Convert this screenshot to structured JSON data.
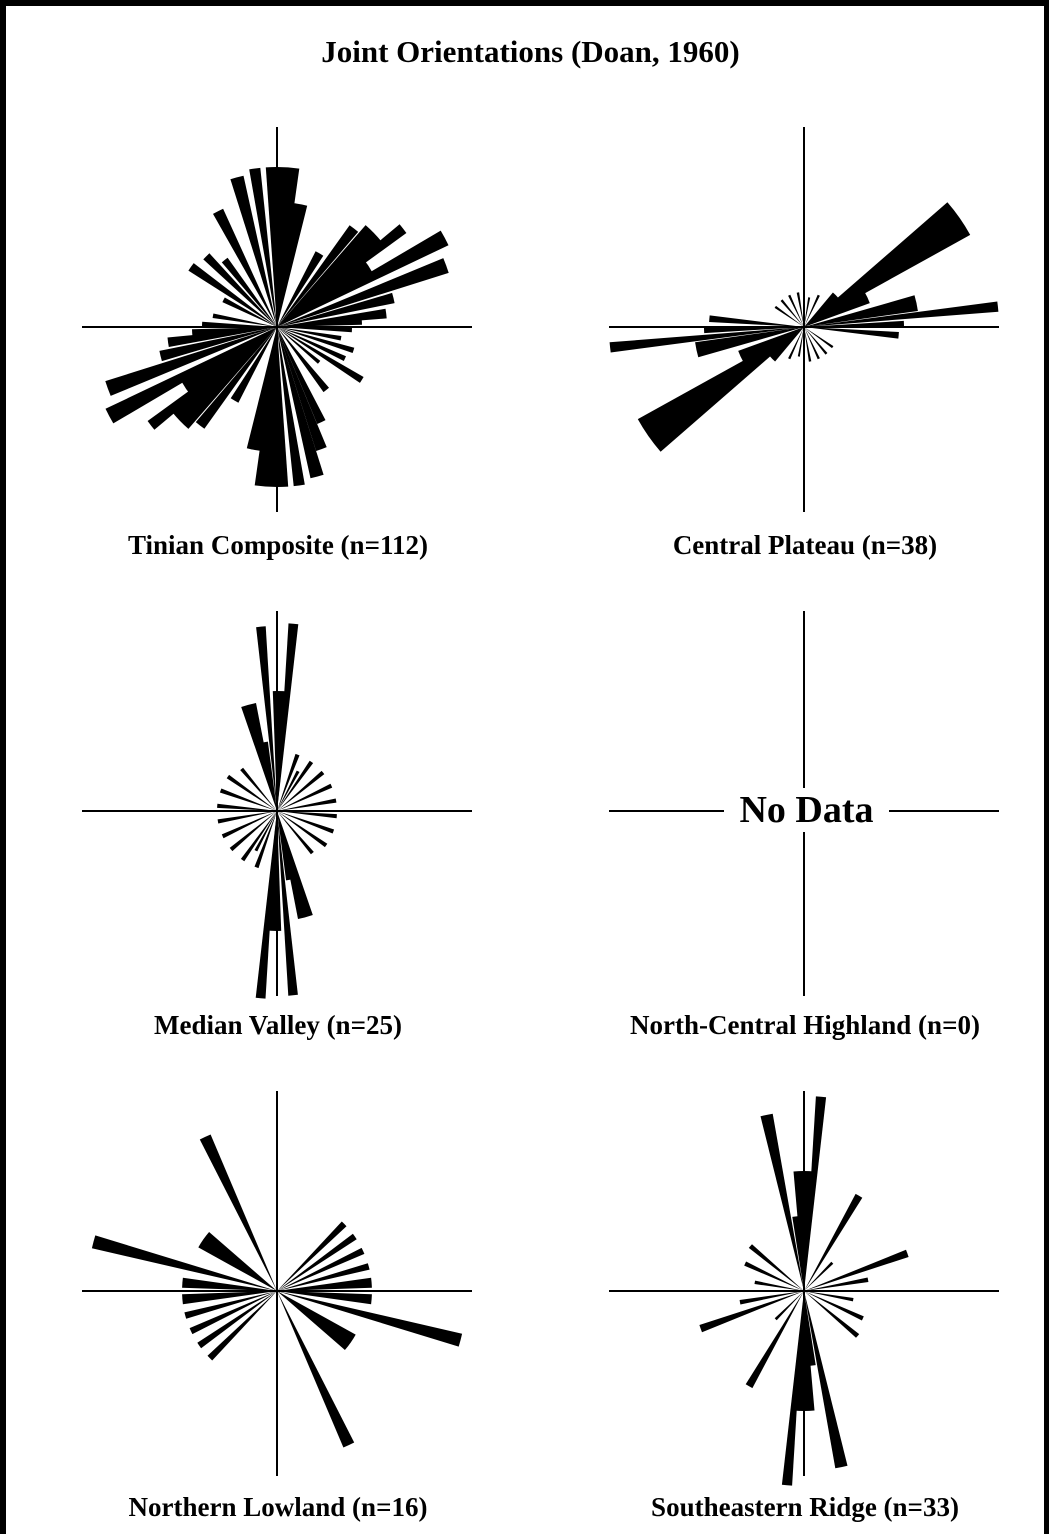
{
  "title": "Joint Orientations (Doan, 1960)",
  "no_data_text": "No Data",
  "chart_data": [
    {
      "type": "rose",
      "title": "Tinian Composite (n=112)",
      "petals": [
        {
          "az": 2,
          "r": 160,
          "w": 12
        },
        {
          "az": 8,
          "r": 125,
          "w": 12
        },
        {
          "az": 352,
          "r": 160,
          "w": 4
        },
        {
          "az": 345,
          "r": 155,
          "w": 5
        },
        {
          "az": 333,
          "r": 130,
          "w": 5
        },
        {
          "az": 322,
          "r": 85,
          "w": 5
        },
        {
          "az": 315,
          "r": 100,
          "w": 5
        },
        {
          "az": 305,
          "r": 105,
          "w": 5
        },
        {
          "az": 297,
          "r": 60,
          "w": 5
        },
        {
          "az": 30,
          "r": 85,
          "w": 6
        },
        {
          "az": 38,
          "r": 125,
          "w": 5
        },
        {
          "az": 46,
          "r": 135,
          "w": 10
        },
        {
          "az": 52,
          "r": 160,
          "w": 4
        },
        {
          "az": 56,
          "r": 110,
          "w": 10
        },
        {
          "az": 62,
          "r": 190,
          "w": 5
        },
        {
          "az": 70,
          "r": 180,
          "w": 5
        },
        {
          "az": 76,
          "r": 120,
          "w": 5
        },
        {
          "az": 83,
          "r": 110,
          "w": 5
        },
        {
          "az": 86,
          "r": 85,
          "w": 5
        },
        {
          "az": 92,
          "r": 75,
          "w": 4
        },
        {
          "az": 100,
          "r": 65,
          "w": 4
        },
        {
          "az": 107,
          "r": 80,
          "w": 4
        },
        {
          "az": 115,
          "r": 75,
          "w": 4
        },
        {
          "az": 122,
          "r": 100,
          "w": 4
        },
        {
          "az": 130,
          "r": 55,
          "w": 4
        },
        {
          "az": 182,
          "r": 160,
          "w": 12
        },
        {
          "az": 188,
          "r": 125,
          "w": 12
        },
        {
          "az": 172,
          "r": 160,
          "w": 4
        },
        {
          "az": 165,
          "r": 155,
          "w": 5
        },
        {
          "az": 155,
          "r": 105,
          "w": 5
        },
        {
          "az": 160,
          "r": 130,
          "w": 5
        },
        {
          "az": 142,
          "r": 80,
          "w": 5
        },
        {
          "az": 210,
          "r": 85,
          "w": 6
        },
        {
          "az": 218,
          "r": 125,
          "w": 5
        },
        {
          "az": 226,
          "r": 135,
          "w": 10
        },
        {
          "az": 232,
          "r": 160,
          "w": 4
        },
        {
          "az": 236,
          "r": 110,
          "w": 10
        },
        {
          "az": 242,
          "r": 190,
          "w": 5
        },
        {
          "az": 250,
          "r": 180,
          "w": 5
        },
        {
          "az": 256,
          "r": 120,
          "w": 5
        },
        {
          "az": 262,
          "r": 110,
          "w": 5
        },
        {
          "az": 266,
          "r": 85,
          "w": 5
        },
        {
          "az": 272,
          "r": 75,
          "w": 4
        },
        {
          "az": 280,
          "r": 65,
          "w": 4
        }
      ]
    },
    {
      "type": "rose",
      "title": "Central Plateau (n=38)",
      "petals": [
        {
          "az": 55,
          "r": 190,
          "w": 12
        },
        {
          "az": 235,
          "r": 190,
          "w": 12
        },
        {
          "az": 78,
          "r": 115,
          "w": 8
        },
        {
          "az": 258,
          "r": 110,
          "w": 8
        },
        {
          "az": 84,
          "r": 195,
          "w": 3
        },
        {
          "az": 264,
          "r": 195,
          "w": 3
        },
        {
          "az": 88,
          "r": 100,
          "w": 3
        },
        {
          "az": 268,
          "r": 100,
          "w": 3
        },
        {
          "az": 95,
          "r": 95,
          "w": 4
        },
        {
          "az": 275,
          "r": 95,
          "w": 4
        },
        {
          "az": 65,
          "r": 70,
          "w": 10
        },
        {
          "az": 245,
          "r": 70,
          "w": 10
        },
        {
          "az": 45,
          "r": 45,
          "w": 10
        },
        {
          "az": 225,
          "r": 45,
          "w": 10
        },
        {
          "az": 25,
          "r": 35,
          "w": 4
        },
        {
          "az": 205,
          "r": 35,
          "w": 4
        },
        {
          "az": 350,
          "r": 35,
          "w": 4
        },
        {
          "az": 170,
          "r": 35,
          "w": 4
        },
        {
          "az": 335,
          "r": 35,
          "w": 4
        },
        {
          "az": 155,
          "r": 35,
          "w": 4
        },
        {
          "az": 320,
          "r": 35,
          "w": 4
        },
        {
          "az": 140,
          "r": 35,
          "w": 4
        },
        {
          "az": 305,
          "r": 35,
          "w": 4
        },
        {
          "az": 125,
          "r": 35,
          "w": 4
        },
        {
          "az": 10,
          "r": 30,
          "w": 4
        },
        {
          "az": 190,
          "r": 30,
          "w": 4
        }
      ]
    },
    {
      "type": "rose",
      "title": "Median Valley (n=25)",
      "petals": [
        {
          "az": 5,
          "r": 188,
          "w": 3
        },
        {
          "az": 185,
          "r": 188,
          "w": 3
        },
        {
          "az": 355,
          "r": 185,
          "w": 3
        },
        {
          "az": 175,
          "r": 185,
          "w": 3
        },
        {
          "az": 2,
          "r": 120,
          "w": 8
        },
        {
          "az": 182,
          "r": 120,
          "w": 8
        },
        {
          "az": 345,
          "r": 110,
          "w": 8
        },
        {
          "az": 165,
          "r": 110,
          "w": 8
        },
        {
          "az": 350,
          "r": 70,
          "w": 5
        },
        {
          "az": 170,
          "r": 70,
          "w": 5
        },
        {
          "az": 20,
          "r": 60,
          "w": 4
        },
        {
          "az": 200,
          "r": 60,
          "w": 4
        },
        {
          "az": 35,
          "r": 60,
          "w": 4
        },
        {
          "az": 215,
          "r": 60,
          "w": 4
        },
        {
          "az": 50,
          "r": 60,
          "w": 4
        },
        {
          "az": 230,
          "r": 60,
          "w": 4
        },
        {
          "az": 65,
          "r": 60,
          "w": 4
        },
        {
          "az": 245,
          "r": 60,
          "w": 4
        },
        {
          "az": 80,
          "r": 60,
          "w": 4
        },
        {
          "az": 260,
          "r": 60,
          "w": 4
        },
        {
          "az": 95,
          "r": 60,
          "w": 4
        },
        {
          "az": 275,
          "r": 60,
          "w": 4
        },
        {
          "az": 110,
          "r": 60,
          "w": 4
        },
        {
          "az": 290,
          "r": 60,
          "w": 4
        },
        {
          "az": 125,
          "r": 60,
          "w": 4
        },
        {
          "az": 305,
          "r": 60,
          "w": 4
        },
        {
          "az": 140,
          "r": 55,
          "w": 4
        },
        {
          "az": 320,
          "r": 55,
          "w": 4
        },
        {
          "az": 28,
          "r": 45,
          "w": 4
        },
        {
          "az": 208,
          "r": 45,
          "w": 4
        }
      ]
    },
    {
      "type": "rose",
      "title": "North-Central Highland (n=0)",
      "petals": []
    },
    {
      "type": "rose",
      "title": "Northern Lowland (n=16)",
      "petals": [
        {
          "az": 335,
          "r": 170,
          "w": 4
        },
        {
          "az": 155,
          "r": 170,
          "w": 4
        },
        {
          "az": 285,
          "r": 190,
          "w": 4
        },
        {
          "az": 105,
          "r": 190,
          "w": 4
        },
        {
          "az": 305,
          "r": 90,
          "w": 12
        },
        {
          "az": 125,
          "r": 90,
          "w": 12
        },
        {
          "az": 275,
          "r": 95,
          "w": 6
        },
        {
          "az": 95,
          "r": 95,
          "w": 6
        },
        {
          "az": 265,
          "r": 95,
          "w": 6
        },
        {
          "az": 85,
          "r": 95,
          "w": 6
        },
        {
          "az": 255,
          "r": 95,
          "w": 4
        },
        {
          "az": 75,
          "r": 95,
          "w": 4
        },
        {
          "az": 245,
          "r": 95,
          "w": 4
        },
        {
          "az": 65,
          "r": 95,
          "w": 4
        },
        {
          "az": 235,
          "r": 95,
          "w": 4
        },
        {
          "az": 55,
          "r": 95,
          "w": 4
        },
        {
          "az": 225,
          "r": 95,
          "w": 4
        },
        {
          "az": 45,
          "r": 95,
          "w": 4
        }
      ]
    },
    {
      "type": "rose",
      "title": "Southeastern Ridge (n=33)",
      "petals": [
        {
          "az": 348,
          "r": 180,
          "w": 4
        },
        {
          "az": 168,
          "r": 180,
          "w": 4
        },
        {
          "az": 5,
          "r": 195,
          "w": 3
        },
        {
          "az": 185,
          "r": 195,
          "w": 3
        },
        {
          "az": 0,
          "r": 120,
          "w": 10
        },
        {
          "az": 180,
          "r": 120,
          "w": 10
        },
        {
          "az": 355,
          "r": 75,
          "w": 8
        },
        {
          "az": 175,
          "r": 75,
          "w": 8
        },
        {
          "az": 30,
          "r": 110,
          "w": 4
        },
        {
          "az": 210,
          "r": 110,
          "w": 4
        },
        {
          "az": 70,
          "r": 110,
          "w": 4
        },
        {
          "az": 250,
          "r": 110,
          "w": 4
        },
        {
          "az": 80,
          "r": 65,
          "w": 4
        },
        {
          "az": 260,
          "r": 65,
          "w": 4
        },
        {
          "az": 115,
          "r": 65,
          "w": 4
        },
        {
          "az": 295,
          "r": 65,
          "w": 4
        },
        {
          "az": 130,
          "r": 70,
          "w": 4
        },
        {
          "az": 310,
          "r": 70,
          "w": 4
        },
        {
          "az": 100,
          "r": 50,
          "w": 4
        },
        {
          "az": 280,
          "r": 50,
          "w": 4
        },
        {
          "az": 45,
          "r": 40,
          "w": 4
        },
        {
          "az": 225,
          "r": 40,
          "w": 4
        }
      ]
    }
  ]
}
